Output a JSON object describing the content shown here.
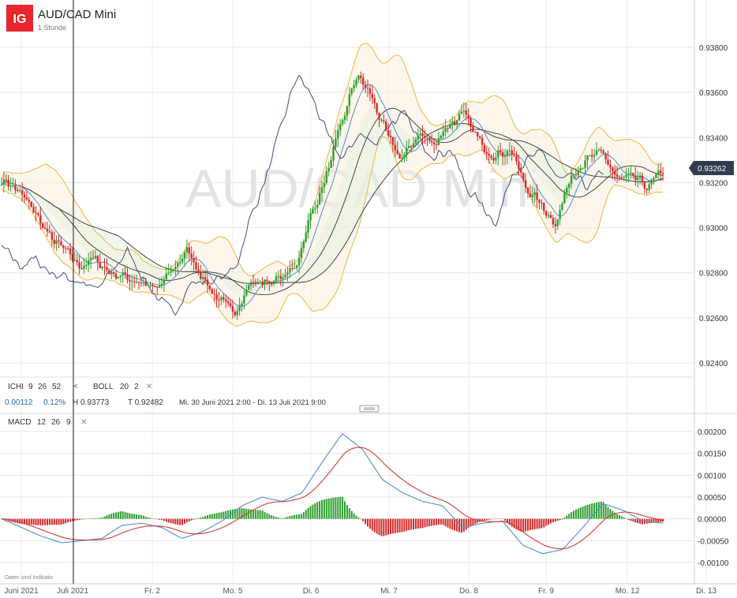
{
  "header": {
    "logo": "IG",
    "title": "AUD/CAD Mini",
    "subtitle": "1 Stunde",
    "watermark": "AUD/CAD Mini"
  },
  "indicators": {
    "ichi": {
      "label": "ICHI",
      "p1": "9",
      "p2": "26",
      "p3": "52"
    },
    "boll": {
      "label": "BOLL",
      "p1": "20",
      "p2": "2"
    },
    "macd": {
      "label": "MACD",
      "p1": "12",
      "p2": "26",
      "p3": "9"
    },
    "close_icon": "close-icon"
  },
  "info_bar": {
    "change": "0.00112",
    "change_pct": "0.12%",
    "high": "H 0.93773",
    "low": "T 0.92482",
    "range": "Mi. 30 Juni 2021 2:00 - Di. 13 Juli 2021 9:00"
  },
  "disclaimer": "Daten sind Indikativ",
  "colors": {
    "bull": "#2e9e2e",
    "bear": "#d42a2a",
    "boll": "#f0b63c",
    "ichi": "#333333",
    "tenkan": "#4f8fd6",
    "chikou": "#4b4a7a",
    "macd_line": "#4f8fd6",
    "signal_line": "#d63a3a",
    "price_tag": "#2f3b4f",
    "logo_red": "#e8262d"
  },
  "chart_data": {
    "type": "candlestick",
    "current_price": "0.93262",
    "x_labels": [
      "Juni 2021",
      "Juli 2021",
      "Fr. 2",
      "Mo. 5",
      "Di. 6",
      "Mi. 7",
      "Do. 8",
      "Fr. 9",
      "Mo. 12",
      "Di. 13"
    ],
    "price_ticks": [
      "0.93800",
      "0.93600",
      "0.93400",
      "0.93200",
      "0.93000",
      "0.92800",
      "0.92600",
      "0.92400"
    ],
    "price_range": [
      0.9225,
      0.9396
    ],
    "macd_ticks": [
      "0.00200",
      "0.00150",
      "0.00100",
      "0.00050",
      "0.00000",
      "-0.00050",
      "-0.00100"
    ],
    "macd_range": [
      -0.0012,
      0.0022
    ],
    "price_anchors": [
      0.9322,
      0.9316,
      0.9308,
      0.9296,
      0.929,
      0.9283,
      0.9286,
      0.928,
      0.9278,
      0.9276,
      0.9272,
      0.9281,
      0.929,
      0.9278,
      0.9268,
      0.9262,
      0.9275,
      0.9276,
      0.9277,
      0.9282,
      0.9305,
      0.9322,
      0.9345,
      0.9368,
      0.9358,
      0.934,
      0.933,
      0.9342,
      0.9337,
      0.9346,
      0.935,
      0.9338,
      0.9332,
      0.9335,
      0.9318,
      0.931,
      0.9302,
      0.9325,
      0.933,
      0.9333,
      0.9321,
      0.9322,
      0.9318,
      0.9326
    ],
    "macd_anchors": [
      0.0,
      -0.0002,
      -0.0004,
      -0.00055,
      -0.0005,
      -0.00045,
      -0.00015,
      -0.0001,
      -0.0002,
      -0.00045,
      -0.0003,
      -5e-05,
      0.0003,
      0.0005,
      0.0004,
      0.0006,
      0.0013,
      0.00195,
      0.0016,
      0.0009,
      0.0006,
      0.0004,
      0.0003,
      -0.0002,
      -0.0001,
      -5e-05,
      -0.0006,
      -0.0008,
      -0.0007,
      -0.0002,
      0.00035,
      0.0002,
      -5e-05,
      -0.0001
    ]
  }
}
